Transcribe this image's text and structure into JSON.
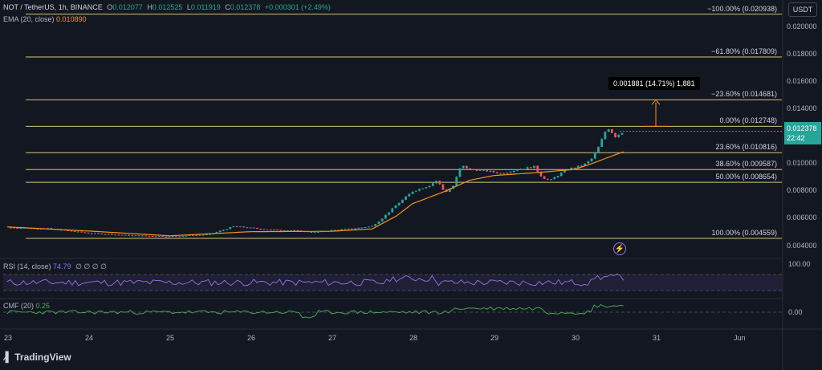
{
  "legend": {
    "symbol": "NOT / TetherUS, 1h, BINANCE",
    "open_key": "O",
    "open": "0.012077",
    "high_key": "H",
    "high": "0.012525",
    "low_key": "L",
    "low": "0.011919",
    "close_key": "C",
    "close": "0.012378",
    "change": "+0.000301 (+2.49%)",
    "ema_label": "EMA (20, close)",
    "ema_value": "0.010890",
    "rsi_label": "RSI (14, close)",
    "rsi_value": "74.79",
    "rsi_extra": "∅ ∅ ∅ ∅",
    "cmf_label": "CMF (20)",
    "cmf_value": "0.25"
  },
  "currency_button": "USDT",
  "price_badge": {
    "price": "0.012378",
    "countdown": "22:42",
    "color": "#26a69a"
  },
  "measure_tooltip": "0.001881 (14.71%) 1,881",
  "fib_levels": [
    {
      "label": "−100.00% (0.020938)",
      "price": 0.020938
    },
    {
      "label": "−61.80% (0.017809)",
      "price": 0.017809
    },
    {
      "label": "−23.60% (0.014681)",
      "price": 0.014681
    },
    {
      "label": "0.00% (0.012748)",
      "price": 0.012748
    },
    {
      "label": "23.60% (0.010816)",
      "price": 0.010816
    },
    {
      "label": "38.60% (0.009587)",
      "price": 0.009587
    },
    {
      "label": "50.00% (0.008654)",
      "price": 0.008654
    },
    {
      "label": "100.00% (0.004559)",
      "price": 0.004559
    }
  ],
  "price_axis": [
    "0.020000",
    "0.018000",
    "0.016000",
    "0.014000",
    "0.012378",
    "0.010000",
    "0.008000",
    "0.006000",
    "0.004000"
  ],
  "price_axis_values": [
    0.02,
    0.018,
    0.016,
    0.014,
    0.012378,
    0.01,
    0.008,
    0.006,
    0.004
  ],
  "rsi_axis": "100.00",
  "cmf_axis": "0.00",
  "time_axis": [
    "23",
    "24",
    "25",
    "26",
    "27",
    "28",
    "29",
    "30",
    "31",
    "Jun"
  ],
  "brand": "TradingView",
  "colors": {
    "up": "#26a69a",
    "down": "#ef5350",
    "ema": "#f7931a",
    "fib": "#d8c37a",
    "rsi": "#9c72e8",
    "cmf": "#4caf50"
  },
  "chart_data": {
    "type": "candlestick",
    "interval": "1h",
    "x_labels": [
      "23",
      "24",
      "25",
      "26",
      "27",
      "28",
      "29",
      "30",
      "31",
      "Jun"
    ],
    "close_path": [
      [
        23.0,
        0.00535
      ],
      [
        23.5,
        0.00528
      ],
      [
        24.0,
        0.00495
      ],
      [
        24.5,
        0.00478
      ],
      [
        25.0,
        0.0047
      ],
      [
        25.5,
        0.00485
      ],
      [
        25.8,
        0.00545
      ],
      [
        26.2,
        0.0052
      ],
      [
        26.5,
        0.00515
      ],
      [
        26.8,
        0.005
      ],
      [
        27.0,
        0.00515
      ],
      [
        27.3,
        0.0053
      ],
      [
        27.5,
        0.00545
      ],
      [
        27.6,
        0.0059
      ],
      [
        27.8,
        0.007
      ],
      [
        28.0,
        0.008
      ],
      [
        28.2,
        0.0084
      ],
      [
        28.3,
        0.0088
      ],
      [
        28.4,
        0.0079
      ],
      [
        28.5,
        0.0084
      ],
      [
        28.6,
        0.0099
      ],
      [
        28.7,
        0.0096
      ],
      [
        28.9,
        0.0095
      ],
      [
        29.1,
        0.0093
      ],
      [
        29.3,
        0.0096
      ],
      [
        29.5,
        0.0098
      ],
      [
        29.6,
        0.009
      ],
      [
        29.7,
        0.0088
      ],
      [
        29.9,
        0.0096
      ],
      [
        30.1,
        0.0099
      ],
      [
        30.2,
        0.0103
      ],
      [
        30.3,
        0.0113
      ],
      [
        30.4,
        0.0127
      ],
      [
        30.5,
        0.012
      ],
      [
        30.6,
        0.01238
      ]
    ],
    "ema_path": [
      [
        23.0,
        0.0054
      ],
      [
        24.0,
        0.0051
      ],
      [
        25.0,
        0.00475
      ],
      [
        26.0,
        0.00505
      ],
      [
        27.0,
        0.00508
      ],
      [
        27.5,
        0.00525
      ],
      [
        27.8,
        0.0062
      ],
      [
        28.0,
        0.0071
      ],
      [
        28.4,
        0.008
      ],
      [
        28.7,
        0.0088
      ],
      [
        29.0,
        0.00915
      ],
      [
        29.5,
        0.00935
      ],
      [
        30.0,
        0.0096
      ],
      [
        30.2,
        0.01
      ],
      [
        30.6,
        0.01089
      ]
    ],
    "rsi_last": 74.79,
    "cmf_last": 0.25
  }
}
